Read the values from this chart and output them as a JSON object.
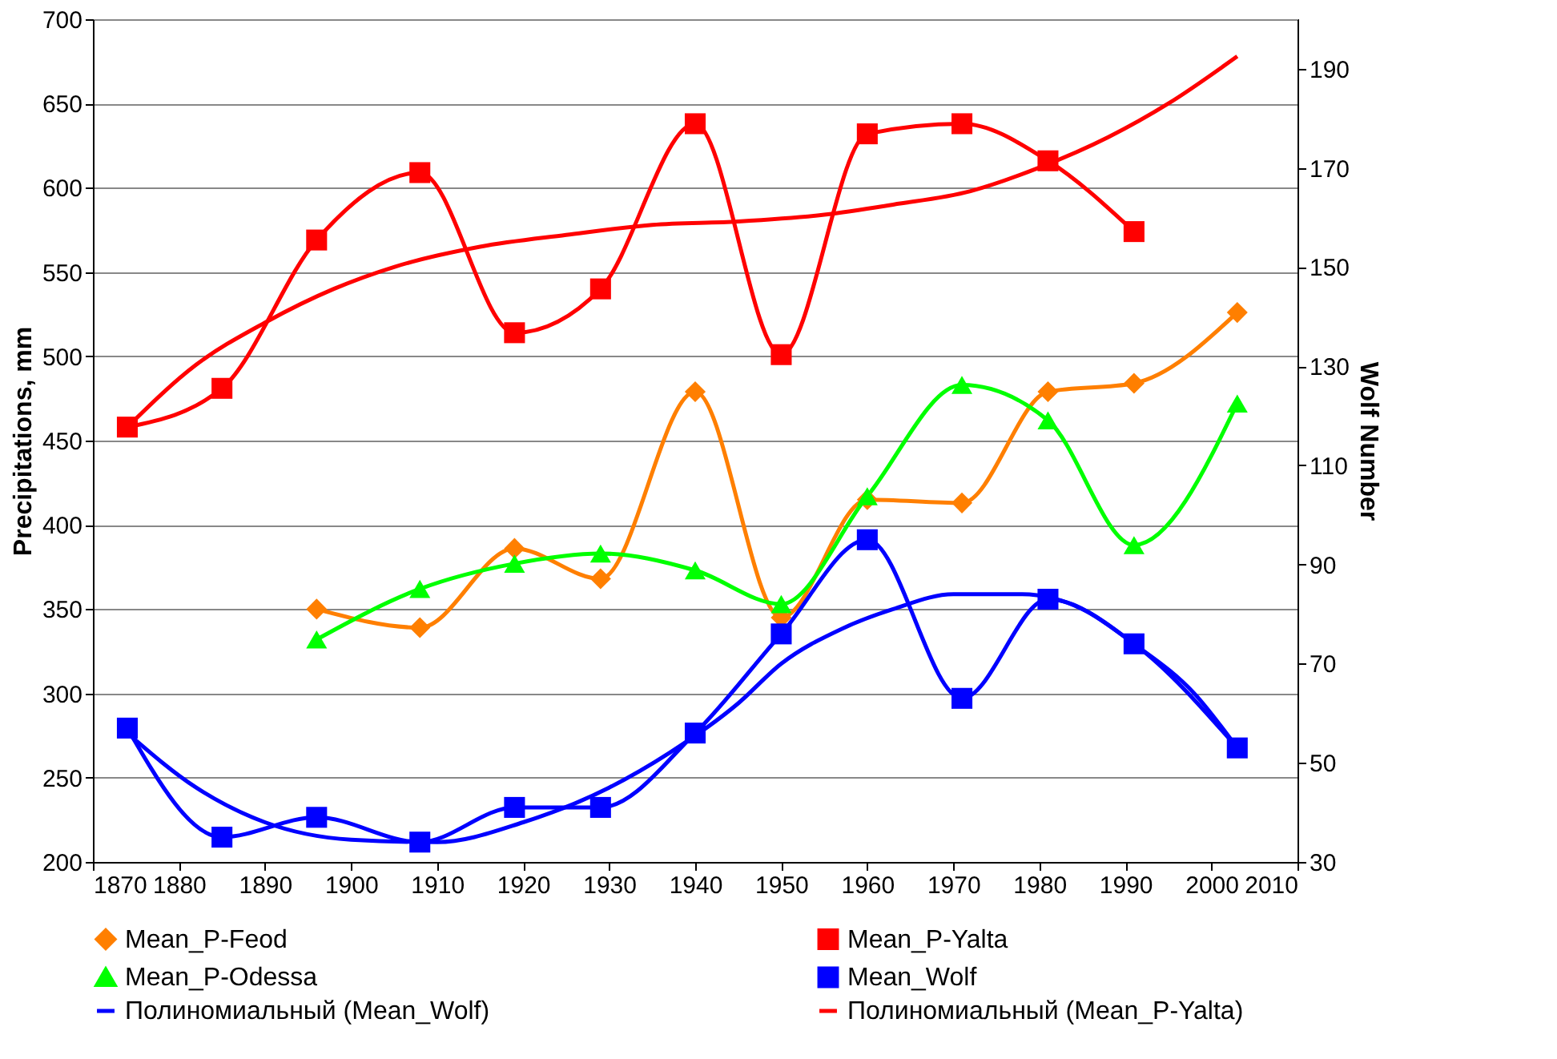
{
  "chart_data": {
    "type": "line",
    "ylabel": "Precipitations, mm",
    "y2label": "Wolf Number",
    "xlim": [
      1870,
      2010
    ],
    "xticks": [
      1870,
      1880,
      1890,
      1900,
      1910,
      1920,
      1930,
      1940,
      1950,
      1960,
      1970,
      1980,
      1990,
      2000,
      2010
    ],
    "ylim": [
      200,
      700
    ],
    "yticks": [
      200,
      250,
      300,
      350,
      400,
      450,
      500,
      550,
      600,
      650,
      700
    ],
    "y2lim": [
      30,
      200
    ],
    "y2ticks": [
      30,
      50,
      70,
      90,
      110,
      130,
      150,
      170,
      190
    ],
    "grid": "y",
    "legend": "bottom",
    "line_style": "solid",
    "series": [
      {
        "name": "Mean_P-Feod",
        "color": "#ff7f00",
        "marker": "diamond",
        "x": [
          1896,
          1908,
          1919,
          1929,
          1940,
          1950,
          1960,
          1971,
          1981,
          1991,
          2003
        ],
        "values": [
          350,
          339,
          386,
          368,
          479,
          345,
          415,
          413,
          479,
          484,
          526
        ]
      },
      {
        "name": "Mean_P-Yalta",
        "color": "#ff0000",
        "marker": "square",
        "x": [
          1874,
          1885,
          1896,
          1908,
          1919,
          1929,
          1940,
          1950,
          1960,
          1971,
          1981,
          1991
        ],
        "values": [
          458,
          481,
          569,
          609,
          514,
          540,
          638,
          501,
          632,
          638,
          616,
          574
        ]
      },
      {
        "name": "Mean_P-Odessa",
        "color": "#00ff00",
        "marker": "triangle",
        "x": [
          1896,
          1908,
          1919,
          1929,
          1940,
          1950,
          1960,
          1971,
          1981,
          1991,
          2003
        ],
        "values": [
          332,
          362,
          377,
          383,
          373,
          353,
          417,
          483,
          462,
          388,
          472
        ]
      },
      {
        "name": "Mean_Wolf",
        "color": "#0000ff",
        "marker": "square",
        "axis": "y2",
        "x": [
          1874,
          1885,
          1896,
          1908,
          1919,
          1929,
          1940,
          1950,
          1960,
          1971,
          1981,
          1991,
          2003
        ],
        "values": [
          57,
          35,
          39,
          34,
          41,
          41,
          56,
          76,
          95,
          63,
          83,
          74,
          53
        ]
      },
      {
        "name": "Полиномиальный (Mean_Wolf)",
        "color": "#0000ff",
        "marker": "none",
        "axis": "y2",
        "x": [
          1874,
          1882,
          1890,
          1900,
          1910,
          1920,
          1930,
          1937,
          1945,
          1950,
          1957,
          1963,
          1970,
          1978,
          1985,
          1991,
          1998,
          2003
        ],
        "values": [
          56,
          45,
          38,
          34.5,
          34,
          38,
          45,
          52,
          62,
          70,
          77,
          81,
          84,
          84,
          81,
          74,
          64,
          53
        ]
      },
      {
        "name": "Полиномиальный (Mean_P-Yalta)",
        "color": "#ff0000",
        "marker": "none",
        "x": [
          1874,
          1882,
          1890,
          1898,
          1905,
          1915,
          1925,
          1935,
          1945,
          1955,
          1963,
          1972,
          1980,
          1988,
          1995,
          2003
        ],
        "values": [
          458,
          495,
          520,
          540,
          553,
          565,
          572,
          578,
          580,
          584,
          590,
          598,
          612,
          630,
          650,
          678
        ]
      }
    ]
  }
}
